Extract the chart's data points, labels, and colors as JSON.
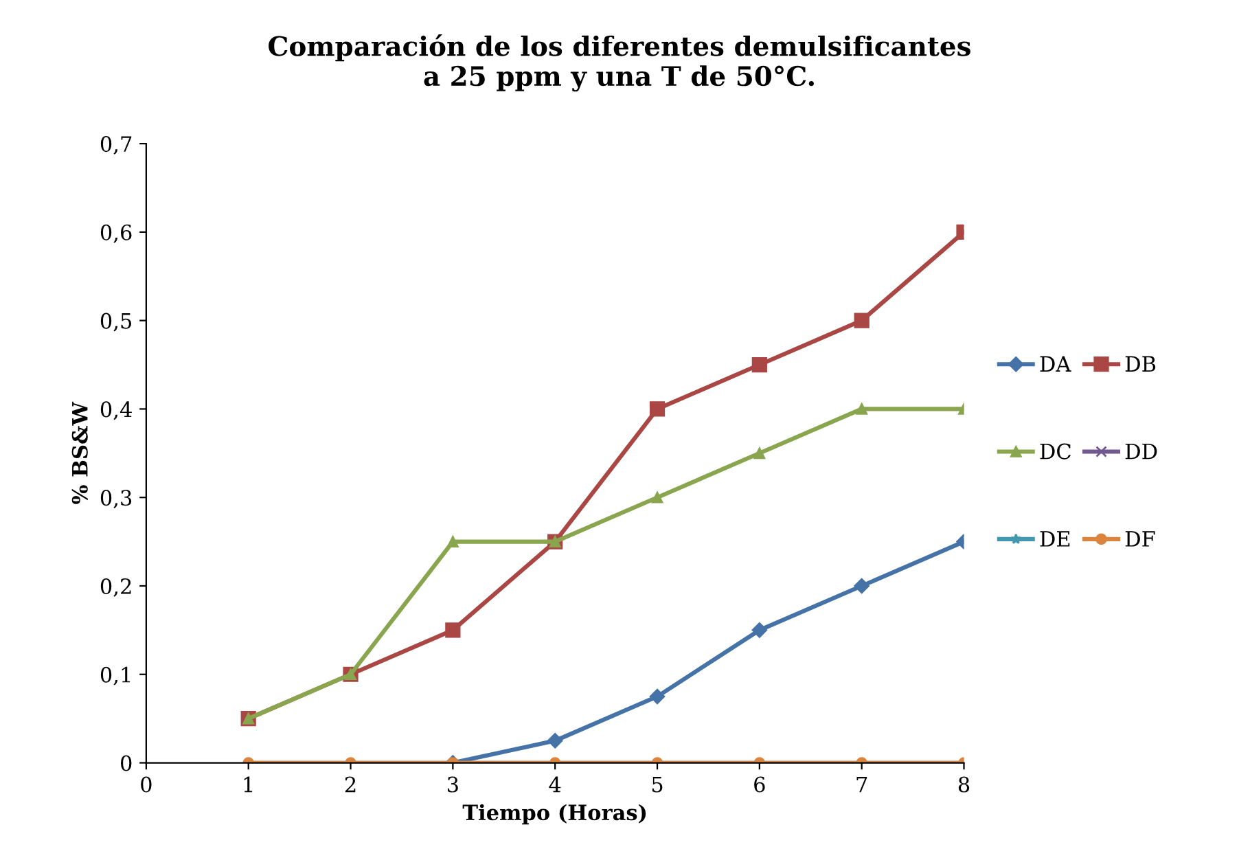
{
  "chart_data": {
    "type": "line",
    "title": "Comparación de los diferentes demulsificantes\na 25 ppm y una T de 50°C.",
    "xlabel": "Tiempo (Horas)",
    "ylabel": "% BS&W",
    "x": [
      1,
      2,
      3,
      4,
      5,
      6,
      7,
      8
    ],
    "series": [
      {
        "name": "DA",
        "color": "#4572a7",
        "marker": "diamond",
        "values": [
          null,
          null,
          0,
          0.025,
          0.075,
          0.15,
          0.2,
          0.25
        ]
      },
      {
        "name": "DB",
        "color": "#aa4643",
        "marker": "square",
        "values": [
          0.05,
          0.1,
          0.15,
          0.25,
          0.4,
          0.45,
          0.5,
          0.6
        ]
      },
      {
        "name": "DC",
        "color": "#89a54e",
        "marker": "triangle",
        "values": [
          0.05,
          0.1,
          0.25,
          0.25,
          0.3,
          0.35,
          0.4,
          0.4
        ]
      },
      {
        "name": "DD",
        "color": "#71588f",
        "marker": "cross",
        "values": [
          null,
          null,
          null,
          null,
          null,
          null,
          null,
          null
        ]
      },
      {
        "name": "DE",
        "color": "#4198af",
        "marker": "star",
        "values": [
          null,
          null,
          null,
          null,
          null,
          null,
          null,
          null
        ]
      },
      {
        "name": "DF",
        "color": "#db843d",
        "marker": "circle",
        "values": [
          0,
          0,
          0,
          0,
          0,
          0,
          0,
          0
        ]
      }
    ],
    "xlim": [
      0,
      8
    ],
    "xticks": [
      0,
      1,
      2,
      3,
      4,
      5,
      6,
      7,
      8
    ],
    "ylim": [
      0,
      0.7
    ],
    "yticks": [
      {
        "value": 0,
        "label": "0"
      },
      {
        "value": 0.1,
        "label": "0,1"
      },
      {
        "value": 0.2,
        "label": "0,2"
      },
      {
        "value": 0.3,
        "label": "0,3"
      },
      {
        "value": 0.4,
        "label": "0,4"
      },
      {
        "value": 0.5,
        "label": "0,5"
      },
      {
        "value": 0.6,
        "label": "0,6"
      },
      {
        "value": 0.7,
        "label": "0,7"
      }
    ],
    "grid": false,
    "legend": "right",
    "line_style": "solid"
  }
}
